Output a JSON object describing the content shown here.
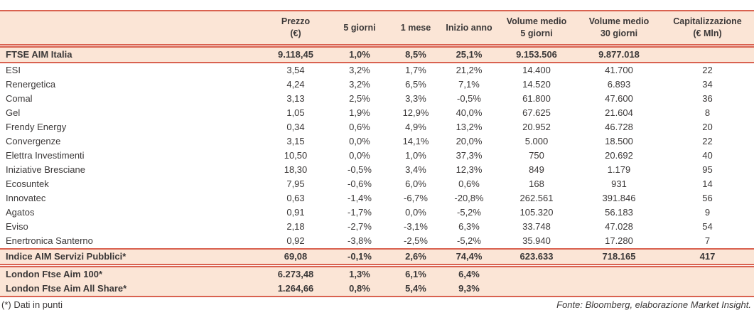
{
  "colors": {
    "band_fill": "#FBE5D6",
    "line_color": "#D96250",
    "text_color": "#3B3838"
  },
  "table": {
    "columns": [
      {
        "line1": "Prezzo",
        "line2": "(€)"
      },
      {
        "line1": "5 giorni",
        "line2": ""
      },
      {
        "line1": "1 mese",
        "line2": ""
      },
      {
        "line1": "Inizio anno",
        "line2": ""
      },
      {
        "line1": "Volume medio",
        "line2": "5 giorni"
      },
      {
        "line1": "Volume medio",
        "line2": "30 giorni"
      },
      {
        "line1": "Capitalizzazione",
        "line2": "(€ Mln)"
      }
    ],
    "ftse": {
      "name": "FTSE AIM Italia",
      "prezzo": "9.118,45",
      "d5": "1,0%",
      "m1": "8,5%",
      "ytd": "25,1%",
      "vol5": "9.153.506",
      "vol30": "9.877.018",
      "cap": ""
    },
    "stocks": [
      {
        "name": "ESI",
        "prezzo": "3,54",
        "d5": "3,2%",
        "m1": "1,7%",
        "ytd": "21,2%",
        "vol5": "14.400",
        "vol30": "41.700",
        "cap": "22"
      },
      {
        "name": "Renergetica",
        "prezzo": "4,24",
        "d5": "3,2%",
        "m1": "6,5%",
        "ytd": "7,1%",
        "vol5": "14.520",
        "vol30": "6.893",
        "cap": "34"
      },
      {
        "name": "Comal",
        "prezzo": "3,13",
        "d5": "2,5%",
        "m1": "3,3%",
        "ytd": "-0,5%",
        "vol5": "61.800",
        "vol30": "47.600",
        "cap": "36"
      },
      {
        "name": "Gel",
        "prezzo": "1,05",
        "d5": "1,9%",
        "m1": "12,9%",
        "ytd": "40,0%",
        "vol5": "67.625",
        "vol30": "21.604",
        "cap": "8"
      },
      {
        "name": "Frendy Energy",
        "prezzo": "0,34",
        "d5": "0,6%",
        "m1": "4,9%",
        "ytd": "13,2%",
        "vol5": "20.952",
        "vol30": "46.728",
        "cap": "20"
      },
      {
        "name": "Convergenze",
        "prezzo": "3,15",
        "d5": "0,0%",
        "m1": "14,1%",
        "ytd": "20,0%",
        "vol5": "5.000",
        "vol30": "18.500",
        "cap": "22"
      },
      {
        "name": "Elettra Investimenti",
        "prezzo": "10,50",
        "d5": "0,0%",
        "m1": "1,0%",
        "ytd": "37,3%",
        "vol5": "750",
        "vol30": "20.692",
        "cap": "40"
      },
      {
        "name": "Iniziative Bresciane",
        "prezzo": "18,30",
        "d5": "-0,5%",
        "m1": "3,4%",
        "ytd": "12,3%",
        "vol5": "849",
        "vol30": "1.179",
        "cap": "95"
      },
      {
        "name": "Ecosuntek",
        "prezzo": "7,95",
        "d5": "-0,6%",
        "m1": "6,0%",
        "ytd": "0,6%",
        "vol5": "168",
        "vol30": "931",
        "cap": "14"
      },
      {
        "name": "Innovatec",
        "prezzo": "0,63",
        "d5": "-1,4%",
        "m1": "-6,7%",
        "ytd": "-20,8%",
        "vol5": "262.561",
        "vol30": "391.846",
        "cap": "56"
      },
      {
        "name": "Agatos",
        "prezzo": "0,91",
        "d5": "-1,7%",
        "m1": "0,0%",
        "ytd": "-5,2%",
        "vol5": "105.320",
        "vol30": "56.183",
        "cap": "9"
      },
      {
        "name": "Eviso",
        "prezzo": "2,18",
        "d5": "-2,7%",
        "m1": "-3,1%",
        "ytd": "6,3%",
        "vol5": "33.748",
        "vol30": "47.028",
        "cap": "54"
      },
      {
        "name": "Enertronica Santerno",
        "prezzo": "0,92",
        "d5": "-3,8%",
        "m1": "-2,5%",
        "ytd": "-5,2%",
        "vol5": "35.940",
        "vol30": "17.280",
        "cap": "7"
      }
    ],
    "servizi": {
      "name": "Indice AIM Servizi Pubblici*",
      "prezzo": "69,08",
      "d5": "-0,1%",
      "m1": "2,6%",
      "ytd": "74,4%",
      "vol5": "623.633",
      "vol30": "718.165",
      "cap": "417"
    },
    "london": [
      {
        "name": "London Ftse Aim 100*",
        "prezzo": "6.273,48",
        "d5": "1,3%",
        "m1": "6,1%",
        "ytd": "6,4%",
        "vol5": "",
        "vol30": "",
        "cap": ""
      },
      {
        "name": "London Ftse Aim All Share*",
        "prezzo": "1.264,66",
        "d5": "0,8%",
        "m1": "5,4%",
        "ytd": "9,3%",
        "vol5": "",
        "vol30": "",
        "cap": ""
      }
    ]
  },
  "footer": {
    "note": "(*) Dati in punti",
    "source": "Fonte: Bloomberg, elaborazione Market Insight."
  }
}
